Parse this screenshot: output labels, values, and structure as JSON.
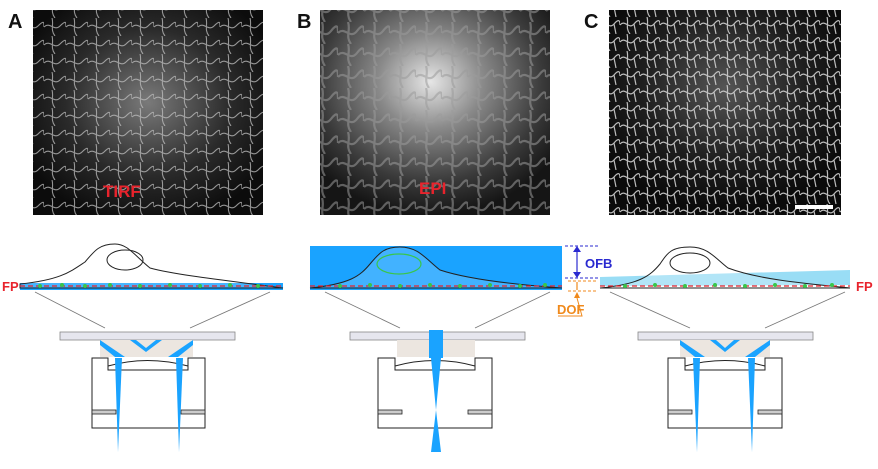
{
  "panels": [
    {
      "letter": "A",
      "label": "TIRF"
    },
    {
      "letter": "B",
      "label": "EPI"
    },
    {
      "letter": "C",
      "label": ""
    }
  ],
  "annotations": {
    "fp_left": "FP",
    "fp_right": "FP",
    "ofb": "OFB",
    "dof": "DOF"
  },
  "colors": {
    "excitation": "#1aa3ff",
    "cell_outline": "#222222",
    "focal_plane": "#e8232c",
    "ofb": "#2a2ad0",
    "dof": "#f08a1c",
    "fluor": "#39c64a"
  }
}
